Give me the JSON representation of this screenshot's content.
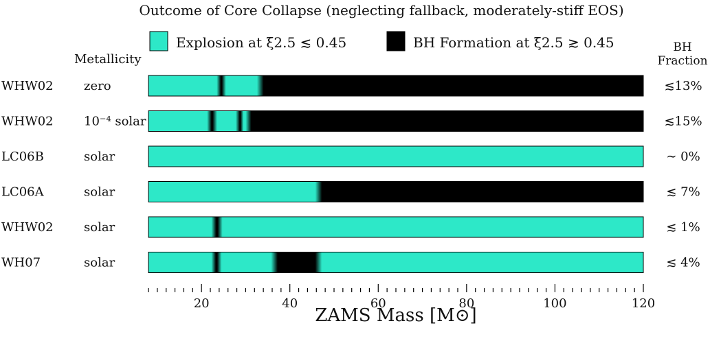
{
  "chart_data": {
    "type": "bar",
    "title": "Outcome of Core Collapse (neglecting fallback, moderately-stiff EOS)",
    "legend": [
      {
        "label": "Explosion at ξ2.5 ≲ 0.45",
        "color": "#2de8c8",
        "outcome": "explosion"
      },
      {
        "label": "BH Formation at ξ2.5 ≳ 0.45",
        "color": "#000000",
        "outcome": "bh"
      }
    ],
    "metallicity_header": "Metallicity",
    "fraction_header": [
      "BH",
      "Fraction"
    ],
    "xlabel": "ZAMS Mass [M⊙]",
    "xlim": [
      8,
      120
    ],
    "xticks": [
      20,
      40,
      60,
      80,
      100,
      120
    ],
    "minor_tick_step": 2,
    "series": [
      {
        "model": "WHW02",
        "metallicity": "zero",
        "bh_fraction": "≲13%",
        "segments": [
          {
            "start": 8,
            "end": 24.2,
            "outcome": "explosion"
          },
          {
            "start": 24.2,
            "end": 24.8,
            "outcome": "bh"
          },
          {
            "start": 24.8,
            "end": 33.3,
            "outcome": "explosion"
          },
          {
            "start": 33.3,
            "end": 120,
            "outcome": "bh"
          }
        ]
      },
      {
        "model": "WHW02",
        "metallicity": "10⁻⁴ solar",
        "bh_fraction": "≲15%",
        "segments": [
          {
            "start": 8,
            "end": 22,
            "outcome": "explosion"
          },
          {
            "start": 22,
            "end": 22.8,
            "outcome": "bh"
          },
          {
            "start": 22.8,
            "end": 28.5,
            "outcome": "explosion"
          },
          {
            "start": 28.5,
            "end": 29,
            "outcome": "bh"
          },
          {
            "start": 29,
            "end": 30.5,
            "outcome": "explosion"
          },
          {
            "start": 30.5,
            "end": 120,
            "outcome": "bh"
          }
        ]
      },
      {
        "model": "LC06B",
        "metallicity": "solar",
        "bh_fraction": "∼ 0%",
        "segments": [
          {
            "start": 8,
            "end": 120,
            "outcome": "explosion"
          }
        ]
      },
      {
        "model": "LC06A",
        "metallicity": "solar",
        "bh_fraction": "≲ 7%",
        "segments": [
          {
            "start": 8,
            "end": 46.5,
            "outcome": "explosion"
          },
          {
            "start": 46.5,
            "end": 120,
            "outcome": "bh"
          }
        ]
      },
      {
        "model": "WHW02",
        "metallicity": "solar",
        "bh_fraction": "≲ 1%",
        "segments": [
          {
            "start": 8,
            "end": 23,
            "outcome": "explosion"
          },
          {
            "start": 23,
            "end": 24,
            "outcome": "bh"
          },
          {
            "start": 24,
            "end": 120,
            "outcome": "explosion"
          }
        ]
      },
      {
        "model": "WH07",
        "metallicity": "solar",
        "bh_fraction": "≲ 4%",
        "segments": [
          {
            "start": 8,
            "end": 23,
            "outcome": "explosion"
          },
          {
            "start": 23,
            "end": 23.8,
            "outcome": "bh"
          },
          {
            "start": 23.8,
            "end": 36.5,
            "outcome": "explosion"
          },
          {
            "start": 36.5,
            "end": 46.5,
            "outcome": "bh"
          },
          {
            "start": 46.5,
            "end": 120,
            "outcome": "explosion"
          }
        ]
      }
    ]
  }
}
